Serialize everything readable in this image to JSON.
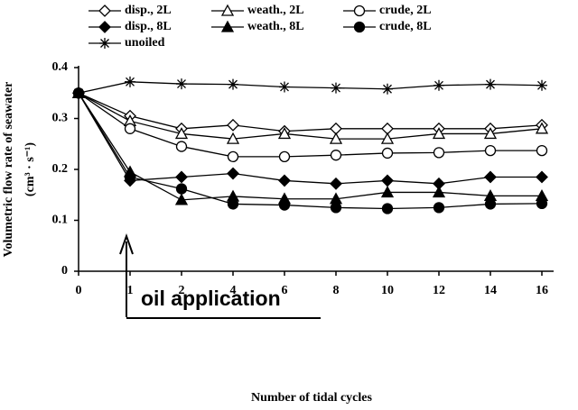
{
  "chart_data": {
    "type": "line",
    "categories": [
      "0",
      "1",
      "2",
      "4",
      "6",
      "8",
      "10",
      "12",
      "14",
      "16"
    ],
    "series": [
      {
        "name": "disp., 2L",
        "color": "#000000",
        "marker": "diamond",
        "filled": false,
        "values": [
          0.35,
          0.305,
          0.28,
          0.287,
          0.275,
          0.28,
          0.28,
          0.28,
          0.28,
          0.287
        ]
      },
      {
        "name": "weath., 2L",
        "color": "#000000",
        "marker": "triangle",
        "filled": false,
        "values": [
          0.35,
          0.295,
          0.27,
          0.26,
          0.27,
          0.26,
          0.26,
          0.27,
          0.27,
          0.28
        ]
      },
      {
        "name": "crude, 2L",
        "color": "#000000",
        "marker": "circle",
        "filled": false,
        "values": [
          0.35,
          0.28,
          0.245,
          0.225,
          0.225,
          0.228,
          0.232,
          0.233,
          0.237,
          0.237
        ]
      },
      {
        "name": "disp., 8L",
        "color": "#000000",
        "marker": "diamond",
        "filled": true,
        "values": [
          0.35,
          0.178,
          0.185,
          0.192,
          0.178,
          0.172,
          0.178,
          0.172,
          0.185,
          0.185
        ]
      },
      {
        "name": "weath., 8L",
        "color": "#000000",
        "marker": "triangle",
        "filled": true,
        "values": [
          0.35,
          0.195,
          0.14,
          0.147,
          0.142,
          0.142,
          0.155,
          0.155,
          0.148,
          0.148
        ]
      },
      {
        "name": "crude, 8L",
        "color": "#000000",
        "marker": "circle",
        "filled": true,
        "values": [
          0.35,
          0.185,
          0.162,
          0.132,
          0.13,
          0.125,
          0.123,
          0.125,
          0.132,
          0.133
        ]
      },
      {
        "name": "unoiled",
        "color": "#000000",
        "marker": "asterisk",
        "filled": false,
        "values": [
          0.35,
          0.372,
          0.368,
          0.367,
          0.362,
          0.36,
          0.358,
          0.365,
          0.367,
          0.365
        ]
      }
    ],
    "ylim": [
      0,
      0.4
    ],
    "yticks": [
      0,
      0.1,
      0.2,
      0.3,
      0.4
    ],
    "y_label": [
      "Volumetric flow rate of seawater",
      "(cm³ · s⁻¹)"
    ],
    "x_label": "Number of tidal cycles",
    "annotation": "oil application",
    "grid": false
  }
}
